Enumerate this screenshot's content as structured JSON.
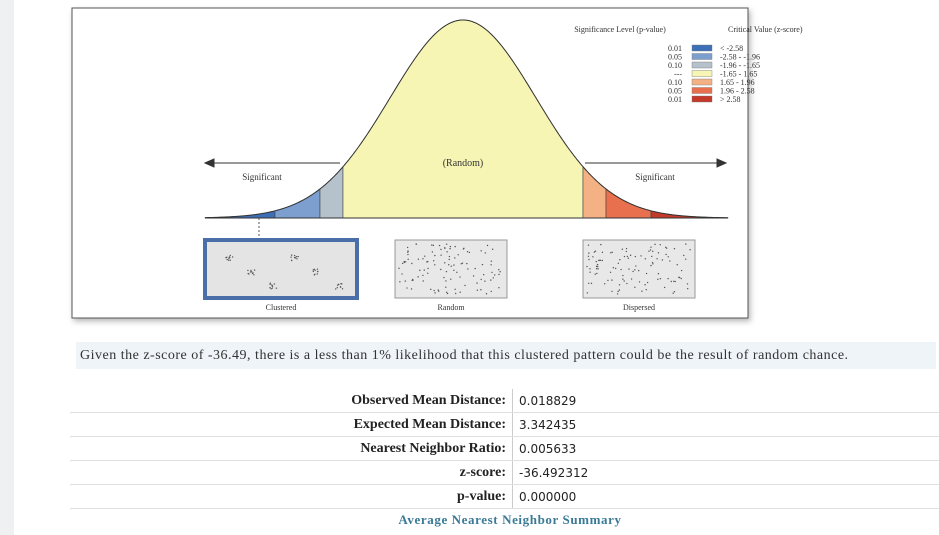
{
  "figure": {
    "legend": {
      "p_header": "Significance Level (p-value)",
      "z_header": "Critical Value (z-score)",
      "rows": [
        {
          "p": "0.01",
          "z": "< -2.58",
          "color": "#3d6fb6"
        },
        {
          "p": "0.05",
          "z": "-2.58 - -1.96",
          "color": "#7d9fd0"
        },
        {
          "p": "0.10",
          "z": "-1.96 - -1.65",
          "color": "#b5c2cc"
        },
        {
          "p": "---",
          "z": "-1.65 - 1.65",
          "color": "#f7f5b4"
        },
        {
          "p": "0.10",
          "z": "1.65 - 1.96",
          "color": "#f4b184"
        },
        {
          "p": "0.05",
          "z": "1.96 - 2.58",
          "color": "#e8704e"
        },
        {
          "p": "0.01",
          "z": "> 2.58",
          "color": "#c43a2a"
        }
      ]
    },
    "left_label": "Significant",
    "center_label": "(Random)",
    "right_label": "Significant",
    "patterns": [
      "Clustered",
      "Random",
      "Dispersed"
    ]
  },
  "summary": {
    "text": "Given the z-score of -36.49, there is a less than 1% likelihood that this clustered pattern could be the result of random chance."
  },
  "table": {
    "rows": [
      [
        "Observed Mean Distance:",
        "0.018829"
      ],
      [
        "Expected Mean Distance:",
        "3.342435"
      ],
      [
        "Nearest Neighbor Ratio:",
        "0.005633"
      ],
      [
        "z-score:",
        "-36.492312"
      ],
      [
        "p-value:",
        "0.000000"
      ]
    ],
    "caption": "Average Nearest Neighbor Summary"
  }
}
